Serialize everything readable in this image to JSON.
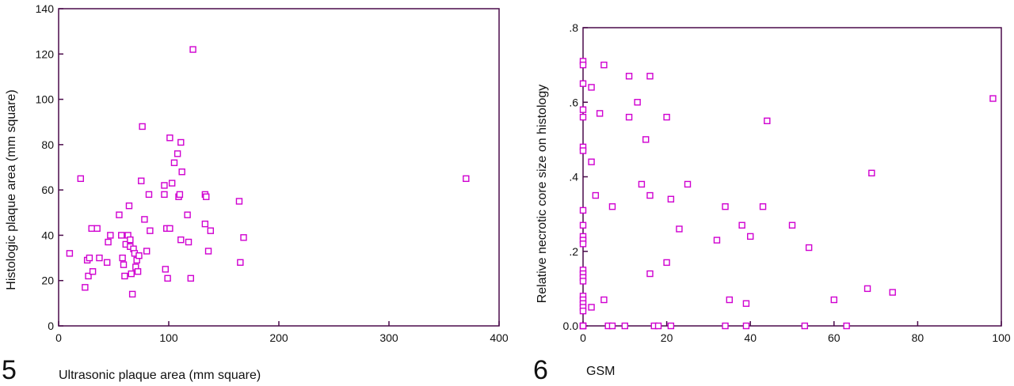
{
  "marker_color": "#d000d0",
  "frame_color": "#4a0a4a",
  "charts": [
    {
      "fig_number": "5",
      "xlabel": "Ultrasonic plaque area (mm square)",
      "ylabel": "Histologic plaque area (mm square)",
      "xticks": [
        "0",
        "100",
        "200",
        "300",
        "400"
      ],
      "yticks": [
        "0",
        "20",
        "40",
        "60",
        "80",
        "100",
        "120",
        "140"
      ]
    },
    {
      "fig_number": "6",
      "xlabel": "GSM",
      "ylabel": "Relative necrotic core size on histology",
      "xticks": [
        "0",
        "20",
        "40",
        "60",
        "80",
        "100"
      ],
      "yticks": [
        "0.0",
        ".2",
        ".4",
        ".6",
        ".8"
      ]
    }
  ],
  "chart_data": [
    {
      "type": "scatter",
      "title": "",
      "xlabel": "Ultrasonic plaque area (mm square)",
      "ylabel": "Histologic plaque area (mm square)",
      "xlim": [
        0,
        400
      ],
      "ylim": [
        0,
        140
      ],
      "grid": false,
      "x": [
        10,
        20,
        24,
        26,
        27,
        28,
        30,
        31,
        35,
        37,
        44,
        45,
        47,
        55,
        57,
        58,
        59,
        60,
        61,
        63,
        64,
        65,
        65,
        66,
        67,
        68,
        69,
        70,
        71,
        72,
        73,
        75,
        76,
        78,
        80,
        82,
        83,
        96,
        96,
        97,
        98,
        99,
        101,
        101,
        103,
        105,
        108,
        109,
        110,
        111,
        111,
        112,
        117,
        118,
        120,
        122,
        133,
        133,
        134,
        136,
        138,
        164,
        165,
        168,
        370
      ],
      "y": [
        32,
        65,
        17,
        29,
        22,
        30,
        43,
        24,
        43,
        30,
        28,
        37,
        40,
        49,
        40,
        30,
        27,
        22,
        36,
        40,
        53,
        38,
        35,
        23,
        14,
        34,
        32,
        26,
        29,
        24,
        31,
        64,
        88,
        47,
        33,
        58,
        42,
        62,
        58,
        25,
        43,
        21,
        43,
        83,
        63,
        72,
        76,
        57,
        58,
        38,
        81,
        68,
        49,
        37,
        21,
        122,
        45,
        58,
        57,
        33,
        42,
        55,
        28,
        39,
        65
      ]
    },
    {
      "type": "scatter",
      "title": "",
      "xlabel": "GSM",
      "ylabel": "Relative necrotic core size on histology",
      "xlim": [
        0,
        100
      ],
      "ylim": [
        0,
        0.8
      ],
      "grid": false,
      "x": [
        0,
        0,
        0,
        0,
        0,
        0,
        0,
        0,
        0,
        0,
        0,
        0,
        0,
        0,
        0,
        0,
        0,
        0,
        0,
        0,
        0,
        0,
        0,
        0,
        2,
        2,
        2,
        3,
        4,
        5,
        5,
        6,
        7,
        7,
        10,
        11,
        11,
        13,
        14,
        15,
        16,
        16,
        16,
        17,
        18,
        20,
        20,
        21,
        21,
        23,
        25,
        32,
        34,
        34,
        35,
        38,
        39,
        39,
        40,
        43,
        44,
        50,
        53,
        54,
        60,
        63,
        68,
        69,
        74,
        98
      ],
      "y": [
        0.71,
        0.7,
        0.65,
        0.58,
        0.56,
        0.48,
        0.47,
        0.31,
        0.27,
        0.24,
        0.23,
        0.22,
        0.15,
        0.14,
        0.13,
        0.12,
        0.08,
        0.07,
        0.06,
        0.05,
        0.04,
        0.0,
        0.0,
        0.0,
        0.64,
        0.44,
        0.05,
        0.35,
        0.57,
        0.7,
        0.07,
        0.0,
        0.32,
        0.0,
        0.0,
        0.67,
        0.56,
        0.6,
        0.38,
        0.5,
        0.67,
        0.35,
        0.14,
        0.0,
        0.0,
        0.56,
        0.17,
        0.34,
        0.0,
        0.26,
        0.38,
        0.23,
        0.32,
        0.0,
        0.07,
        0.27,
        0.06,
        0.0,
        0.24,
        0.32,
        0.55,
        0.27,
        0.0,
        0.21,
        0.07,
        0.0,
        0.1,
        0.41,
        0.09,
        0.61
      ]
    }
  ]
}
